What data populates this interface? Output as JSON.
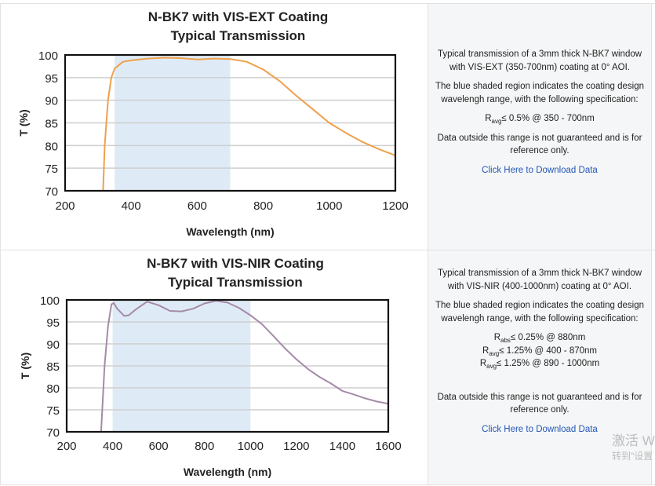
{
  "chart_data": [
    {
      "type": "line",
      "title": "N-BK7 with VIS-EXT Coating",
      "subtitle": "Typical Transmission",
      "xlabel": "Wavelength (nm)",
      "ylabel": "T (%)",
      "xlim": [
        200,
        1200
      ],
      "ylim": [
        70,
        100
      ],
      "xticks": [
        "200",
        "400",
        "600",
        "800",
        "1000",
        "1200"
      ],
      "yticks": [
        "70",
        "75",
        "80",
        "85",
        "90",
        "95",
        "100"
      ],
      "grid": "horizontal",
      "shaded_range": [
        350,
        700
      ],
      "shade_color": "#deebf6",
      "line_color": "#f0a04b",
      "x": [
        315,
        320,
        330,
        340,
        350,
        375,
        400,
        450,
        500,
        550,
        600,
        650,
        700,
        750,
        800,
        850,
        900,
        950,
        1000,
        1050,
        1100,
        1150,
        1200
      ],
      "y": [
        70,
        80,
        90,
        95,
        97,
        98.5,
        98.8,
        99.2,
        99.4,
        99.3,
        99.0,
        99.2,
        99.1,
        98.5,
        96.8,
        94.2,
        91,
        88,
        85,
        82.8,
        80.8,
        79.2,
        77.8
      ]
    },
    {
      "type": "line",
      "title": "N-BK7 with VIS-NIR Coating",
      "subtitle": "Typical Transmission",
      "xlabel": "Wavelength (nm)",
      "ylabel": "T (%)",
      "xlim": [
        200,
        1600
      ],
      "ylim": [
        70,
        100
      ],
      "xticks": [
        "200",
        "400",
        "600",
        "800",
        "1000",
        "1200",
        "1400",
        "1600"
      ],
      "yticks": [
        "70",
        "75",
        "80",
        "85",
        "90",
        "95",
        "100"
      ],
      "grid": "horizontal",
      "shaded_range": [
        400,
        1000
      ],
      "shade_color": "#deebf6",
      "line_color": "#a58aa8",
      "x": [
        350,
        365,
        380,
        395,
        405,
        420,
        450,
        470,
        500,
        550,
        600,
        650,
        700,
        750,
        800,
        850,
        900,
        950,
        1000,
        1050,
        1100,
        1150,
        1200,
        1250,
        1300,
        1350,
        1400,
        1450,
        1500,
        1550,
        1600
      ],
      "y": [
        70,
        85,
        94,
        99,
        99.3,
        98,
        96.4,
        96.5,
        97.8,
        99.6,
        98.8,
        97.5,
        97.4,
        98,
        99.2,
        99.8,
        99.4,
        98.2,
        96.5,
        94.5,
        91.8,
        89,
        86.5,
        84.3,
        82.5,
        81,
        79.3,
        78.5,
        77.6,
        76.9,
        76.4
      ]
    }
  ],
  "rows": [
    {
      "desc": "Typical transmission of a 3mm thick N-BK7 window with VIS-EXT (350-700nm) coating at 0° AOI.",
      "shade_note": "The blue shaded region indicates the coating design wavelengh range, with the following specification:",
      "specs": [
        {
          "sym": "R",
          "sub": "avg",
          "text": "≤ 0.5% @ 350 - 700nm"
        }
      ],
      "disclaimer": "Data outside this range is not guaranteed and is for reference only.",
      "download": "Click Here to Download Data"
    },
    {
      "desc": "Typical transmission of a 3mm thick N-BK7 window with VIS-NIR (400-1000nm) coating at 0° AOI.",
      "shade_note": "The blue shaded region indicates the coating design wavelengh range, with the following specification:",
      "specs": [
        {
          "sym": "R",
          "sub": "abs",
          "text": "≤ 0.25% @ 880nm"
        },
        {
          "sym": "R",
          "sub": "avg",
          "text": "≤ 1.25% @ 400 - 870nm"
        },
        {
          "sym": "R",
          "sub": "avg",
          "text": "≤ 1.25% @ 890 - 1000nm"
        }
      ],
      "disclaimer": "Data outside this range is not guaranteed and is for reference only.",
      "download": "Click Here to Download Data"
    }
  ],
  "watermark": {
    "line1": "激活 W",
    "line2": "转到\"设置"
  }
}
